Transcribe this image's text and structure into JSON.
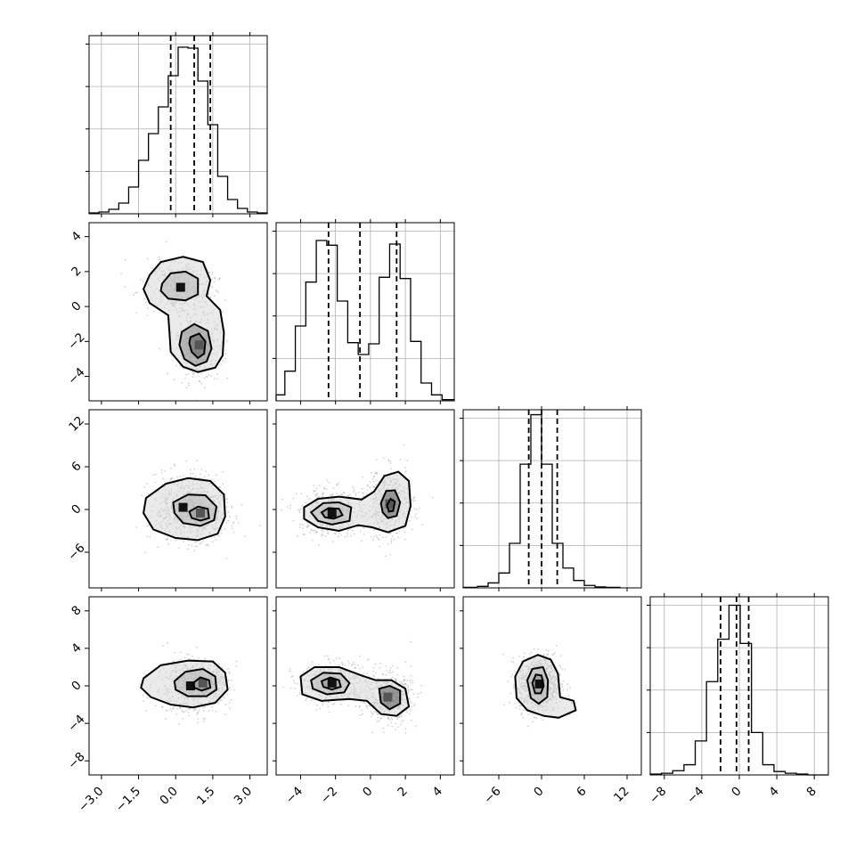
{
  "chart_data": {
    "type": "corner",
    "description_source": "triangular grid of marginal histograms and 2-D density plots",
    "parameters": [
      {
        "id": "p0",
        "range": [
          -3.5,
          3.7
        ],
        "ticks": [
          -3.0,
          -1.5,
          0.0,
          1.5,
          3.0
        ],
        "tick_labels": [
          "−3.0",
          "−1.5",
          "0.0",
          "1.5",
          "3.0"
        ],
        "quantiles": [
          -0.2,
          0.75,
          1.4
        ]
      },
      {
        "id": "p1",
        "range": [
          -5.4,
          4.8
        ],
        "ticks": [
          -4,
          -2,
          0,
          2,
          4
        ],
        "tick_labels": [
          "−4",
          "−2",
          "0",
          "2",
          "4"
        ],
        "quantiles": [
          -2.4,
          -0.6,
          1.5
        ]
      },
      {
        "id": "p2",
        "range": [
          -11,
          14
        ],
        "ticks": [
          -6,
          0,
          6,
          12
        ],
        "tick_labels": [
          "−6",
          "0",
          "6",
          "12"
        ],
        "quantiles": [
          -1.8,
          0.0,
          2.2
        ]
      },
      {
        "id": "p3",
        "range": [
          -9.5,
          9.5
        ],
        "ticks": [
          -8,
          -4,
          0,
          4,
          8
        ],
        "tick_labels": [
          "−8",
          "−4",
          "0",
          "4",
          "8"
        ],
        "quantiles": [
          -2.0,
          -0.3,
          1.0
        ]
      }
    ],
    "histograms": [
      {
        "param": "p0",
        "edges": [
          -3.5,
          -3.1,
          -2.7,
          -2.3,
          -1.9,
          -1.5,
          -1.1,
          -0.7,
          -0.3,
          0.1,
          0.5,
          0.9,
          1.3,
          1.7,
          2.1,
          2.5,
          2.9,
          3.3,
          3.7
        ],
        "counts": [
          1,
          2,
          5,
          12,
          30,
          60,
          90,
          120,
          155,
          187,
          186,
          149,
          100,
          42,
          16,
          6,
          2,
          1
        ],
        "ymax": 200
      },
      {
        "param": "p1",
        "edges": [
          -5.4,
          -4.9,
          -4.3,
          -3.7,
          -3.1,
          -2.5,
          -1.9,
          -1.3,
          -0.7,
          -0.1,
          0.5,
          1.1,
          1.7,
          2.3,
          2.9,
          3.5,
          4.1,
          4.8
        ],
        "counts": [
          5,
          25,
          63,
          100,
          135,
          131,
          84,
          49,
          39,
          48,
          104,
          132,
          103,
          50,
          15,
          5,
          1
        ],
        "ymax": 150
      },
      {
        "param": "p2",
        "edges": [
          -11,
          -9,
          -7.5,
          -6,
          -4.5,
          -3,
          -1.5,
          0,
          1.5,
          3,
          4.5,
          6,
          7.5,
          9,
          11
        ],
        "counts": [
          1,
          3,
          10,
          30,
          90,
          250,
          350,
          250,
          90,
          40,
          15,
          5,
          2,
          1
        ],
        "ymax": 360
      },
      {
        "param": "p3",
        "edges": [
          -9.5,
          -8.3,
          -7.1,
          -5.9,
          -4.7,
          -3.5,
          -2.3,
          -1.1,
          0.1,
          1.3,
          2.5,
          3.7,
          4.9,
          6.1,
          7.3,
          8.5,
          9.5
        ],
        "counts": [
          1,
          2,
          5,
          12,
          40,
          110,
          160,
          200,
          155,
          50,
          12,
          4,
          2,
          1,
          0,
          0
        ],
        "ymax": 210
      }
    ],
    "density_panels": [
      {
        "x": "p0",
        "y": "p1",
        "modes": [
          {
            "cx": 0.2,
            "cy": 1.1,
            "sx": 0.55,
            "sy": 0.6
          },
          {
            "cx": 0.95,
            "cy": -2.2,
            "sx": 0.35,
            "sy": 0.75
          }
        ],
        "contours": [
          [
            [
              -1.05,
              1.8
            ],
            [
              -0.6,
              2.55
            ],
            [
              0.3,
              2.85
            ],
            [
              1.1,
              2.55
            ],
            [
              1.4,
              1.5
            ],
            [
              1.25,
              0.6
            ],
            [
              1.8,
              -0.2
            ],
            [
              1.95,
              -1.5
            ],
            [
              1.9,
              -2.8
            ],
            [
              1.6,
              -3.5
            ],
            [
              0.9,
              -3.75
            ],
            [
              0.3,
              -3.45
            ],
            [
              -0.2,
              -2.6
            ],
            [
              -0.25,
              -1.5
            ],
            [
              -0.3,
              -0.5
            ],
            [
              -1.05,
              0.2
            ],
            [
              -1.3,
              1.0
            ]
          ],
          [
            [
              -0.55,
              1.3
            ],
            [
              -0.2,
              1.9
            ],
            [
              0.4,
              2.0
            ],
            [
              0.9,
              1.6
            ],
            [
              0.9,
              0.7
            ],
            [
              0.4,
              0.35
            ],
            [
              -0.3,
              0.45
            ],
            [
              -0.6,
              0.9
            ]
          ],
          [
            [
              0.25,
              -1.45
            ],
            [
              0.75,
              -1.0
            ],
            [
              1.3,
              -1.4
            ],
            [
              1.45,
              -2.4
            ],
            [
              1.25,
              -3.15
            ],
            [
              0.8,
              -3.4
            ],
            [
              0.35,
              -3.0
            ],
            [
              0.15,
              -2.2
            ]
          ],
          [
            [
              0.6,
              -1.75
            ],
            [
              0.95,
              -1.55
            ],
            [
              1.2,
              -2.0
            ],
            [
              1.15,
              -2.7
            ],
            [
              0.9,
              -2.95
            ],
            [
              0.65,
              -2.6
            ],
            [
              0.55,
              -2.1
            ]
          ]
        ]
      },
      {
        "x": "p0",
        "y": "p2",
        "modes": [
          {
            "cx": 0.3,
            "cy": 0.3,
            "sx": 0.55,
            "sy": 1.9
          },
          {
            "cx": 1.0,
            "cy": -0.5,
            "sx": 0.45,
            "sy": 1.5
          }
        ],
        "contours": [
          [
            [
              -1.2,
              1.6
            ],
            [
              -0.4,
              3.6
            ],
            [
              0.5,
              4.4
            ],
            [
              1.4,
              4.0
            ],
            [
              1.95,
              2.1
            ],
            [
              2.0,
              -1.0
            ],
            [
              1.7,
              -3.4
            ],
            [
              0.9,
              -4.3
            ],
            [
              0.0,
              -4.0
            ],
            [
              -0.9,
              -2.8
            ],
            [
              -1.3,
              -0.5
            ]
          ],
          [
            [
              -0.1,
              1.0
            ],
            [
              0.5,
              2.1
            ],
            [
              1.2,
              2.0
            ],
            [
              1.65,
              0.4
            ],
            [
              1.55,
              -1.5
            ],
            [
              1.0,
              -2.3
            ],
            [
              0.3,
              -1.9
            ],
            [
              -0.05,
              -0.5
            ]
          ],
          [
            [
              0.55,
              -0.3
            ],
            [
              0.9,
              0.4
            ],
            [
              1.3,
              0.1
            ],
            [
              1.35,
              -1.2
            ],
            [
              1.0,
              -1.55
            ],
            [
              0.65,
              -1.2
            ]
          ]
        ]
      },
      {
        "x": "p0",
        "y": "p3",
        "modes": [
          {
            "cx": 0.6,
            "cy": 0.0,
            "sx": 0.6,
            "sy": 1.2
          },
          {
            "cx": 1.1,
            "cy": 0.3,
            "sx": 0.35,
            "sy": 0.7
          }
        ],
        "contours": [
          [
            [
              -1.3,
              0.8
            ],
            [
              -0.6,
              2.2
            ],
            [
              0.5,
              2.7
            ],
            [
              1.5,
              2.6
            ],
            [
              2.0,
              1.4
            ],
            [
              2.1,
              -0.4
            ],
            [
              1.6,
              -1.8
            ],
            [
              0.7,
              -2.3
            ],
            [
              -0.2,
              -2.0
            ],
            [
              -1.0,
              -1.2
            ],
            [
              -1.4,
              -0.2
            ]
          ],
          [
            [
              -0.05,
              0.5
            ],
            [
              0.4,
              1.5
            ],
            [
              1.1,
              1.8
            ],
            [
              1.6,
              1.0
            ],
            [
              1.65,
              -0.4
            ],
            [
              1.25,
              -1.1
            ],
            [
              0.5,
              -1.1
            ],
            [
              0.0,
              -0.4
            ]
          ],
          [
            [
              0.7,
              0.3
            ],
            [
              1.0,
              0.9
            ],
            [
              1.35,
              0.6
            ],
            [
              1.4,
              -0.2
            ],
            [
              1.05,
              -0.5
            ],
            [
              0.75,
              -0.2
            ]
          ]
        ]
      },
      {
        "x": "p1",
        "y": "p2",
        "modes": [
          {
            "cx": -2.2,
            "cy": -0.5,
            "sx": 0.75,
            "sy": 1.3
          },
          {
            "cx": 1.1,
            "cy": 0.8,
            "sx": 0.55,
            "sy": 2.0
          }
        ],
        "contours": [
          [
            [
              -3.8,
              0.3
            ],
            [
              -3.0,
              1.5
            ],
            [
              -1.8,
              1.8
            ],
            [
              -0.5,
              1.4
            ],
            [
              0.2,
              2.5
            ],
            [
              0.8,
              4.7
            ],
            [
              1.6,
              5.3
            ],
            [
              2.2,
              4.0
            ],
            [
              2.3,
              0.5
            ],
            [
              2.0,
              -2.3
            ],
            [
              1.0,
              -3.2
            ],
            [
              0.1,
              -2.5
            ],
            [
              -0.7,
              -2.2
            ],
            [
              -1.8,
              -3.0
            ],
            [
              -3.0,
              -2.5
            ],
            [
              -3.8,
              -1.3
            ]
          ],
          [
            [
              -3.4,
              -0.4
            ],
            [
              -2.7,
              0.9
            ],
            [
              -1.8,
              1.0
            ],
            [
              -1.1,
              0.3
            ],
            [
              -1.2,
              -1.6
            ],
            [
              -2.2,
              -2.1
            ],
            [
              -3.0,
              -1.6
            ]
          ],
          [
            [
              -2.8,
              -0.4
            ],
            [
              -2.4,
              0.2
            ],
            [
              -1.8,
              0.1
            ],
            [
              -1.6,
              -0.8
            ],
            [
              -2.1,
              -1.3
            ],
            [
              -2.6,
              -1.1
            ]
          ],
          [
            [
              0.6,
              0.9
            ],
            [
              0.9,
              2.6
            ],
            [
              1.4,
              2.7
            ],
            [
              1.7,
              1.0
            ],
            [
              1.5,
              -0.9
            ],
            [
              1.0,
              -1.2
            ],
            [
              0.7,
              -0.4
            ]
          ],
          [
            [
              0.95,
              0.6
            ],
            [
              1.15,
              1.5
            ],
            [
              1.4,
              1.1
            ],
            [
              1.3,
              -0.2
            ],
            [
              1.05,
              -0.3
            ]
          ]
        ]
      },
      {
        "x": "p1",
        "y": "p3",
        "modes": [
          {
            "cx": -2.2,
            "cy": 0.3,
            "sx": 0.8,
            "sy": 0.9
          },
          {
            "cx": 1.0,
            "cy": -1.2,
            "sx": 0.55,
            "sy": 1.1
          }
        ],
        "contours": [
          [
            [
              -4.0,
              1.0
            ],
            [
              -3.2,
              2.0
            ],
            [
              -1.8,
              2.0
            ],
            [
              -0.5,
              1.1
            ],
            [
              0.3,
              0.6
            ],
            [
              1.2,
              0.6
            ],
            [
              2.0,
              -0.3
            ],
            [
              2.2,
              -2.2
            ],
            [
              1.5,
              -3.2
            ],
            [
              0.6,
              -3.0
            ],
            [
              -0.2,
              -1.6
            ],
            [
              -1.2,
              -1.4
            ],
            [
              -2.8,
              -1.6
            ],
            [
              -3.9,
              -0.9
            ]
          ],
          [
            [
              -3.4,
              0.6
            ],
            [
              -2.7,
              1.4
            ],
            [
              -1.7,
              1.3
            ],
            [
              -1.2,
              0.3
            ],
            [
              -1.5,
              -0.7
            ],
            [
              -2.5,
              -0.9
            ],
            [
              -3.3,
              -0.3
            ]
          ],
          [
            [
              -2.8,
              0.5
            ],
            [
              -2.3,
              0.9
            ],
            [
              -1.8,
              0.6
            ],
            [
              -1.7,
              -0.1
            ],
            [
              -2.2,
              -0.4
            ],
            [
              -2.7,
              -0.1
            ]
          ],
          [
            [
              0.5,
              -0.3
            ],
            [
              1.1,
              0.0
            ],
            [
              1.7,
              -0.5
            ],
            [
              1.7,
              -1.9
            ],
            [
              1.1,
              -2.5
            ],
            [
              0.6,
              -1.8
            ]
          ]
        ]
      },
      {
        "x": "p2",
        "y": "p3",
        "modes": [
          {
            "cx": -0.3,
            "cy": 0.2,
            "sx": 1.2,
            "sy": 1.2
          }
        ],
        "contours": [
          [
            [
              -3.7,
              1.0
            ],
            [
              -2.6,
              2.6
            ],
            [
              -0.5,
              3.3
            ],
            [
              1.3,
              2.8
            ],
            [
              2.3,
              1.3
            ],
            [
              2.6,
              -1.2
            ],
            [
              4.5,
              -1.6
            ],
            [
              4.8,
              -2.6
            ],
            [
              2.4,
              -3.4
            ],
            [
              0.3,
              -3.2
            ],
            [
              -2.0,
              -2.6
            ],
            [
              -3.5,
              -1.3
            ]
          ],
          [
            [
              -2.0,
              0.6
            ],
            [
              -1.3,
              1.8
            ],
            [
              0.2,
              2.0
            ],
            [
              0.9,
              0.6
            ],
            [
              0.8,
              -1.2
            ],
            [
              -0.4,
              -1.9
            ],
            [
              -1.5,
              -1.3
            ]
          ],
          [
            [
              -1.3,
              0.3
            ],
            [
              -0.8,
              1.2
            ],
            [
              0.0,
              1.1
            ],
            [
              0.3,
              0.0
            ],
            [
              -0.1,
              -0.8
            ],
            [
              -0.9,
              -0.8
            ]
          ]
        ]
      }
    ]
  }
}
